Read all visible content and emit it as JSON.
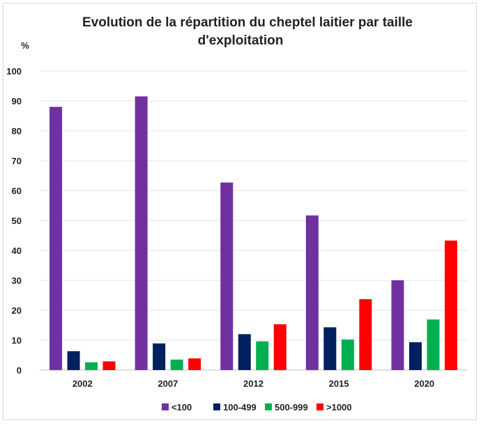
{
  "chart_data": {
    "type": "bar",
    "title_line1": "Evolution de la répartition du cheptel laitier par taille",
    "title_line2": "d'exploitation",
    "ylabel": "%",
    "ylim": [
      0,
      100
    ],
    "yticks": [
      0,
      10,
      20,
      30,
      40,
      50,
      60,
      70,
      80,
      90,
      100
    ],
    "categories": [
      "2002",
      "2007",
      "2012",
      "2015",
      "2020"
    ],
    "series": [
      {
        "name": "<100",
        "color": "#7030a0",
        "values": [
          88.0,
          91.5,
          62.7,
          51.7,
          30.0
        ]
      },
      {
        "name": "100-499",
        "color": "#002060",
        "values": [
          6.3,
          8.9,
          12.0,
          14.3,
          9.3
        ]
      },
      {
        "name": "500-999",
        "color": "#00b050",
        "values": [
          2.6,
          3.5,
          9.6,
          10.2,
          16.9
        ]
      },
      {
        "name": ">1000",
        "color": "#ff0000",
        "values": [
          2.9,
          3.9,
          15.3,
          23.7,
          43.3
        ]
      }
    ],
    "grid": true,
    "legend_position": "bottom"
  }
}
